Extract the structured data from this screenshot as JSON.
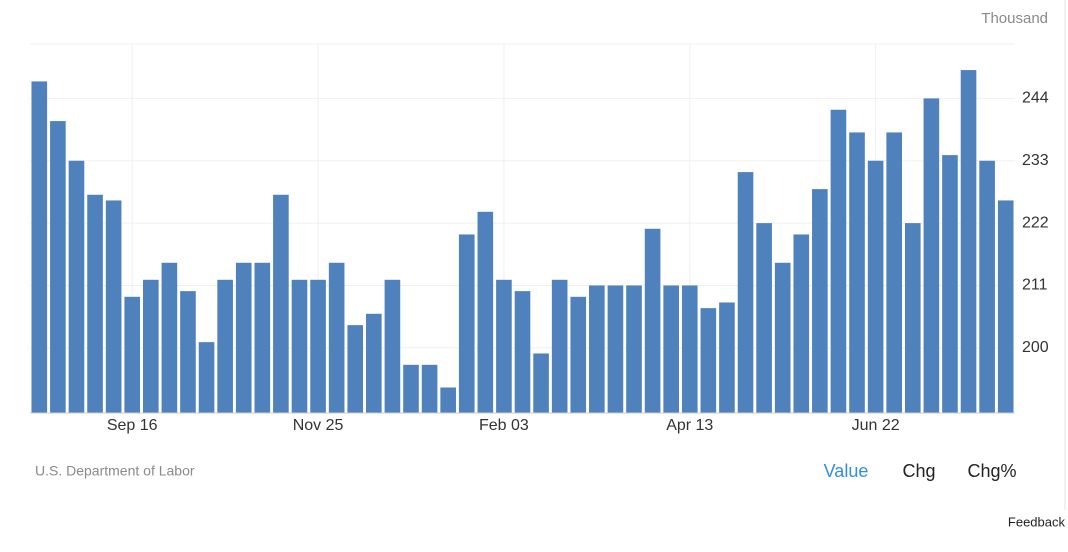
{
  "chart_data": {
    "type": "bar",
    "unit": "Thousand",
    "source": "U.S. Department of Labor",
    "tabs": [
      "Value",
      "Chg",
      "Chg%"
    ],
    "feedback": "Feedback",
    "color": "#4f81bd",
    "categories": [
      null,
      null,
      null,
      null,
      null,
      "Sep 16",
      null,
      null,
      null,
      null,
      null,
      null,
      null,
      null,
      null,
      "Nov 25",
      null,
      null,
      null,
      null,
      null,
      null,
      null,
      null,
      null,
      "Feb 03",
      null,
      null,
      null,
      null,
      null,
      null,
      null,
      null,
      null,
      "Apr 13",
      null,
      null,
      null,
      null,
      null,
      null,
      null,
      null,
      null,
      "Jun 22",
      null,
      null,
      null,
      null,
      null,
      null,
      null
    ],
    "values": [
      247,
      240,
      233,
      227,
      226,
      209,
      212,
      215,
      210,
      201,
      212,
      215,
      215,
      227,
      212,
      212,
      215,
      204,
      206,
      212,
      197,
      197,
      193,
      220,
      224,
      212,
      210,
      199,
      212,
      209,
      211,
      211,
      211,
      221,
      211,
      211,
      207,
      208,
      231,
      222,
      215,
      220,
      228,
      242,
      238,
      233,
      238,
      222,
      244,
      234,
      249,
      233,
      226
    ],
    "ylim": [
      188.5,
      253.6
    ],
    "yticks": [
      200,
      211,
      222,
      233,
      244
    ],
    "grid": true
  }
}
